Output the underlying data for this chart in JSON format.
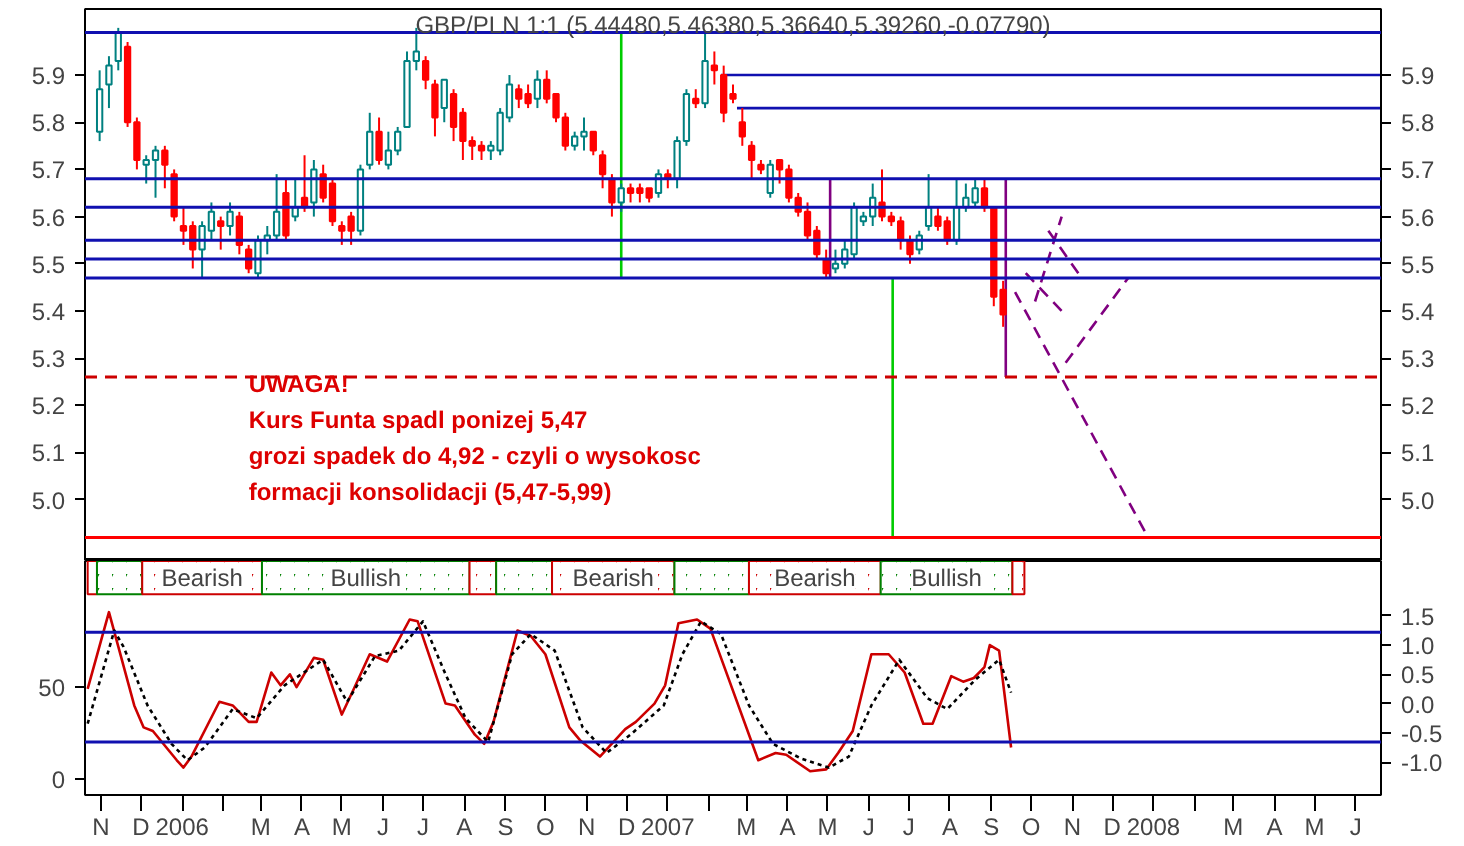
{
  "chart_data": [
    {
      "type": "candlestick",
      "title": "GBP/PLN 1:1 (5.44480,5.46380,5.36640,5.39260,-0.07790)",
      "x": [
        "2005-10-31",
        "2005-11-07",
        "2005-11-14",
        "2005-11-21",
        "2005-11-28",
        "2005-12-05",
        "2005-12-12",
        "2005-12-19",
        "2005-12-26",
        "2006-01-02",
        "2006-01-09",
        "2006-01-16",
        "2006-01-23",
        "2006-01-30",
        "2006-02-06",
        "2006-02-13",
        "2006-02-20",
        "2006-02-27",
        "2006-03-06",
        "2006-03-13",
        "2006-03-20",
        "2006-03-27",
        "2006-04-03",
        "2006-04-10",
        "2006-04-17",
        "2006-04-24",
        "2006-05-01",
        "2006-05-08",
        "2006-05-15",
        "2006-05-22",
        "2006-05-29",
        "2006-06-05",
        "2006-06-12",
        "2006-06-19",
        "2006-06-26",
        "2006-07-03",
        "2006-07-10",
        "2006-07-17",
        "2006-07-24",
        "2006-07-31",
        "2006-08-07",
        "2006-08-14",
        "2006-08-21",
        "2006-08-28",
        "2006-09-04",
        "2006-09-11",
        "2006-09-18",
        "2006-09-25",
        "2006-10-02",
        "2006-10-09",
        "2006-10-16",
        "2006-10-23",
        "2006-10-30",
        "2006-11-06",
        "2006-11-13",
        "2006-11-20",
        "2006-11-27",
        "2006-12-04",
        "2006-12-11",
        "2006-12-18",
        "2006-12-25",
        "2007-01-01",
        "2007-01-08",
        "2007-01-15",
        "2007-01-22",
        "2007-01-29",
        "2007-02-05",
        "2007-02-12",
        "2007-02-19",
        "2007-02-26",
        "2007-03-05",
        "2007-03-12",
        "2007-03-19",
        "2007-03-26",
        "2007-04-02",
        "2007-04-09",
        "2007-04-16",
        "2007-04-23",
        "2007-04-30",
        "2007-05-07",
        "2007-05-14",
        "2007-05-21",
        "2007-05-28",
        "2007-06-04",
        "2007-06-11",
        "2007-06-18",
        "2007-06-25",
        "2007-07-02",
        "2007-07-09",
        "2007-07-16",
        "2007-07-23",
        "2007-07-30",
        "2007-08-06",
        "2007-08-13",
        "2007-08-20",
        "2007-08-27",
        "2007-09-03",
        "2007-09-10"
      ],
      "ohlc": [
        [
          5.78,
          5.91,
          5.76,
          5.87
        ],
        [
          5.88,
          5.94,
          5.83,
          5.92
        ],
        [
          5.93,
          6.0,
          5.91,
          5.99
        ],
        [
          5.96,
          5.97,
          5.79,
          5.8
        ],
        [
          5.8,
          5.81,
          5.7,
          5.72
        ],
        [
          5.71,
          5.73,
          5.67,
          5.72
        ],
        [
          5.72,
          5.75,
          5.64,
          5.74
        ],
        [
          5.74,
          5.75,
          5.66,
          5.71
        ],
        [
          5.69,
          5.7,
          5.59,
          5.6
        ],
        [
          5.58,
          5.62,
          5.54,
          5.57
        ],
        [
          5.58,
          5.59,
          5.49,
          5.53
        ],
        [
          5.53,
          5.59,
          5.47,
          5.58
        ],
        [
          5.57,
          5.63,
          5.55,
          5.61
        ],
        [
          5.59,
          5.6,
          5.53,
          5.58
        ],
        [
          5.58,
          5.63,
          5.56,
          5.61
        ],
        [
          5.6,
          5.61,
          5.52,
          5.54
        ],
        [
          5.53,
          5.54,
          5.48,
          5.49
        ],
        [
          5.48,
          5.56,
          5.47,
          5.55
        ],
        [
          5.55,
          5.58,
          5.52,
          5.56
        ],
        [
          5.56,
          5.69,
          5.55,
          5.61
        ],
        [
          5.65,
          5.68,
          5.55,
          5.56
        ],
        [
          5.6,
          5.68,
          5.59,
          5.62
        ],
        [
          5.64,
          5.73,
          5.61,
          5.62
        ],
        [
          5.63,
          5.72,
          5.6,
          5.7
        ],
        [
          5.69,
          5.71,
          5.63,
          5.64
        ],
        [
          5.67,
          5.68,
          5.58,
          5.59
        ],
        [
          5.58,
          5.59,
          5.54,
          5.57
        ],
        [
          5.6,
          5.61,
          5.54,
          5.57
        ],
        [
          5.57,
          5.71,
          5.56,
          5.7
        ],
        [
          5.71,
          5.82,
          5.7,
          5.78
        ],
        [
          5.78,
          5.81,
          5.71,
          5.72
        ],
        [
          5.71,
          5.78,
          5.7,
          5.74
        ],
        [
          5.74,
          5.79,
          5.73,
          5.78
        ],
        [
          5.79,
          5.95,
          5.79,
          5.93
        ],
        [
          5.93,
          6.0,
          5.91,
          5.95
        ],
        [
          5.93,
          5.94,
          5.87,
          5.89
        ],
        [
          5.88,
          5.89,
          5.77,
          5.81
        ],
        [
          5.83,
          5.89,
          5.8,
          5.89
        ],
        [
          5.86,
          5.87,
          5.76,
          5.79
        ],
        [
          5.82,
          5.83,
          5.72,
          5.76
        ],
        [
          5.76,
          5.77,
          5.72,
          5.75
        ],
        [
          5.75,
          5.76,
          5.72,
          5.74
        ],
        [
          5.74,
          5.76,
          5.72,
          5.75
        ],
        [
          5.74,
          5.83,
          5.73,
          5.82
        ],
        [
          5.81,
          5.9,
          5.8,
          5.88
        ],
        [
          5.87,
          5.88,
          5.83,
          5.85
        ],
        [
          5.86,
          5.88,
          5.83,
          5.84
        ],
        [
          5.85,
          5.91,
          5.83,
          5.89
        ],
        [
          5.89,
          5.91,
          5.84,
          5.85
        ],
        [
          5.86,
          5.86,
          5.8,
          5.81
        ],
        [
          5.81,
          5.82,
          5.74,
          5.75
        ],
        [
          5.75,
          5.78,
          5.74,
          5.77
        ],
        [
          5.77,
          5.81,
          5.74,
          5.78
        ],
        [
          5.78,
          5.78,
          5.73,
          5.74
        ],
        [
          5.73,
          5.74,
          5.66,
          5.69
        ],
        [
          5.68,
          5.69,
          5.6,
          5.63
        ],
        [
          5.63,
          5.67,
          5.61,
          5.66
        ],
        [
          5.66,
          5.67,
          5.63,
          5.65
        ],
        [
          5.66,
          5.67,
          5.63,
          5.65
        ],
        [
          5.66,
          5.66,
          5.63,
          5.64
        ],
        [
          5.65,
          5.7,
          5.64,
          5.69
        ],
        [
          5.69,
          5.7,
          5.66,
          5.68
        ],
        [
          5.68,
          5.77,
          5.66,
          5.76
        ],
        [
          5.76,
          5.87,
          5.75,
          5.86
        ],
        [
          5.85,
          5.87,
          5.83,
          5.84
        ],
        [
          5.84,
          5.99,
          5.83,
          5.93
        ],
        [
          5.92,
          5.95,
          5.88,
          5.91
        ],
        [
          5.9,
          5.92,
          5.8,
          5.82
        ],
        [
          5.86,
          5.88,
          5.84,
          5.85
        ],
        [
          5.8,
          5.83,
          5.75,
          5.77
        ],
        [
          5.75,
          5.76,
          5.68,
          5.72
        ],
        [
          5.71,
          5.72,
          5.69,
          5.7
        ],
        [
          5.65,
          5.72,
          5.64,
          5.71
        ],
        [
          5.72,
          5.72,
          5.67,
          5.7
        ],
        [
          5.7,
          5.71,
          5.63,
          5.64
        ],
        [
          5.64,
          5.65,
          5.6,
          5.61
        ],
        [
          5.61,
          5.63,
          5.55,
          5.56
        ],
        [
          5.57,
          5.58,
          5.51,
          5.52
        ],
        [
          5.51,
          5.53,
          5.47,
          5.48
        ],
        [
          5.49,
          5.53,
          5.48,
          5.5
        ],
        [
          5.5,
          5.55,
          5.49,
          5.53
        ],
        [
          5.52,
          5.63,
          5.51,
          5.62
        ],
        [
          5.59,
          5.61,
          5.58,
          5.6
        ],
        [
          5.6,
          5.67,
          5.58,
          5.64
        ],
        [
          5.63,
          5.7,
          5.59,
          5.6
        ],
        [
          5.6,
          5.61,
          5.58,
          5.59
        ],
        [
          5.59,
          5.6,
          5.53,
          5.55
        ],
        [
          5.55,
          5.56,
          5.5,
          5.52
        ],
        [
          5.53,
          5.57,
          5.52,
          5.56
        ],
        [
          5.58,
          5.69,
          5.57,
          5.62
        ],
        [
          5.6,
          5.62,
          5.57,
          5.58
        ],
        [
          5.59,
          5.6,
          5.54,
          5.55
        ],
        [
          5.55,
          5.68,
          5.54,
          5.62
        ],
        [
          5.62,
          5.67,
          5.61,
          5.64
        ],
        [
          5.63,
          5.68,
          5.62,
          5.66
        ],
        [
          5.66,
          5.68,
          5.61,
          5.62
        ],
        [
          5.62,
          5.62,
          5.41,
          5.43
        ],
        [
          5.4448,
          5.4638,
          5.3664,
          5.3926
        ]
      ],
      "colors": [
        "#008080",
        "#008080",
        "#008080",
        "#ff0000",
        "#ff0000",
        "#008080",
        "#008080",
        "#ff0000",
        "#ff0000",
        "#ff0000",
        "#ff0000",
        "#008080",
        "#008080",
        "#ff0000",
        "#008080",
        "#ff0000",
        "#ff0000",
        "#008080",
        "#008080",
        "#008080",
        "#ff0000",
        "#008080",
        "#ff0000",
        "#008080",
        "#ff0000",
        "#ff0000",
        "#ff0000",
        "#ff0000",
        "#008080",
        "#008080",
        "#ff0000",
        "#008080",
        "#008080",
        "#008080",
        "#008080",
        "#ff0000",
        "#ff0000",
        "#008080",
        "#ff0000",
        "#ff0000",
        "#ff0000",
        "#ff0000",
        "#008080",
        "#008080",
        "#008080",
        "#ff0000",
        "#ff0000",
        "#008080",
        "#ff0000",
        "#ff0000",
        "#ff0000",
        "#008080",
        "#008080",
        "#ff0000",
        "#ff0000",
        "#ff0000",
        "#008080",
        "#ff0000",
        "#ff0000",
        "#ff0000",
        "#008080",
        "#ff0000",
        "#008080",
        "#008080",
        "#ff0000",
        "#008080",
        "#ff0000",
        "#ff0000",
        "#ff0000",
        "#ff0000",
        "#ff0000",
        "#ff0000",
        "#008080",
        "#ff0000",
        "#ff0000",
        "#ff0000",
        "#ff0000",
        "#ff0000",
        "#ff0000",
        "#008080",
        "#008080",
        "#008080",
        "#008080",
        "#008080",
        "#ff0000",
        "#ff0000",
        "#ff0000",
        "#ff0000",
        "#008080",
        "#008080",
        "#ff0000",
        "#ff0000",
        "#008080",
        "#008080",
        "#008080",
        "#ff0000",
        "#ff0000",
        "#ff0000"
      ],
      "xlim": [
        "2005-10-20",
        "2008-06-20"
      ],
      "ylim": [
        4.87,
        6.04
      ],
      "yticks": [
        {
          "value": 5,
          "label": "5.0"
        },
        5.1,
        5.2,
        5.3,
        5.4,
        5.5,
        5.6,
        5.7,
        5.8,
        5.9
      ],
      "y2lim": [
        4.87,
        6.04
      ],
      "y2ticks": [
        {
          "value": 5,
          "label": "5.0"
        },
        5.1,
        5.2,
        5.3,
        5.4,
        5.5,
        5.6,
        5.7,
        5.8,
        5.9
      ],
      "tick_labels": "y",
      "grid": false,
      "ref_lines": [
        {
          "axis": "y",
          "value": 5.99,
          "color": "#1010b0"
        },
        {
          "axis": "y",
          "value": 5.68,
          "color": "#1010b0"
        },
        {
          "axis": "y",
          "value": 5.62,
          "color": "#1010b0"
        },
        {
          "axis": "y",
          "value": 5.55,
          "color": "#1010b0"
        },
        {
          "axis": "y",
          "value": 5.51,
          "color": "#1010b0"
        },
        {
          "axis": "y",
          "value": 5.47,
          "color": "#1010b0"
        },
        {
          "axis": "y",
          "value": 5.26,
          "color": "#cc0000",
          "line_style": "dashed"
        },
        {
          "axis": "y",
          "value": 4.92,
          "color": "#ff0000"
        }
      ],
      "series": [
        {
          "type": "line",
          "x": [
            "2007-02-10",
            "2008-06-20"
          ],
          "values": [
            5.9,
            5.9
          ],
          "color": "#1010b0",
          "line_style": "solid"
        },
        {
          "type": "line",
          "x": [
            "2007-02-22",
            "2008-06-20"
          ],
          "values": [
            5.83,
            5.83
          ],
          "color": "#1010b0",
          "line_style": "solid"
        },
        {
          "type": "line",
          "x": [
            "2006-11-27",
            "2006-11-27"
          ],
          "values": [
            5.47,
            5.99
          ],
          "color": "#00cc00",
          "line_style": "solid"
        },
        {
          "type": "line",
          "x": [
            "2007-06-19",
            "2007-06-19"
          ],
          "values": [
            4.92,
            5.47
          ],
          "color": "#00cc00",
          "line_style": "solid"
        },
        {
          "type": "line",
          "x": [
            "2007-05-03",
            "2007-05-03"
          ],
          "values": [
            5.47,
            5.68
          ],
          "color": "#800080",
          "line_style": "solid"
        },
        {
          "type": "line",
          "x": [
            "2007-09-12",
            "2007-09-12"
          ],
          "values": [
            5.26,
            5.68
          ],
          "color": "#800080",
          "line_style": "solid"
        },
        {
          "type": "line",
          "x": [
            "2007-09-19",
            "2007-12-26"
          ],
          "values": [
            5.44,
            4.93
          ],
          "color": "#800080",
          "line_style": "dashed"
        },
        {
          "type": "line",
          "x": [
            "2007-10-04",
            "2007-10-24"
          ],
          "values": [
            5.42,
            5.6
          ],
          "color": "#800080",
          "line_style": "dashed"
        },
        {
          "type": "line",
          "x": [
            "2007-10-14",
            "2007-11-08"
          ],
          "values": [
            5.57,
            5.47
          ],
          "color": "#800080",
          "line_style": "dashed"
        },
        {
          "type": "line",
          "x": [
            "2007-09-27",
            "2007-10-24"
          ],
          "values": [
            5.48,
            5.4
          ],
          "color": "#800080",
          "line_style": "dashed"
        },
        {
          "type": "line",
          "x": [
            "2007-10-27",
            "2007-12-13"
          ],
          "values": [
            5.29,
            5.47
          ],
          "color": "#800080",
          "line_style": "dashed"
        }
      ],
      "annotations": [
        "UWAGA!",
        "Kurs Funta spadl ponizej 5,47",
        "grozi spadek do 4,92 - czyli o wysokosc",
        "formacji konsolidacji (5,47-5,99)"
      ]
    },
    {
      "type": "line",
      "xlim": [
        "2005-10-20",
        "2008-06-20"
      ],
      "ylim": [
        -9,
        119
      ],
      "yticks": [
        0,
        50
      ],
      "bands": [
        {
          "axis": "x",
          "from": "2005-10-22",
          "to": "2005-10-29",
          "label": null,
          "color": "#cc0000"
        },
        {
          "axis": "x",
          "from": "2005-10-29",
          "to": "2005-12-02",
          "label": null,
          "color": "#008000"
        },
        {
          "axis": "x",
          "from": "2005-12-02",
          "to": "2006-03-02",
          "label": "Bearish",
          "color": "#cc0000"
        },
        {
          "axis": "x",
          "from": "2006-03-02",
          "to": "2006-08-05",
          "label": "Bullish",
          "color": "#008000"
        },
        {
          "axis": "x",
          "from": "2006-08-05",
          "to": "2006-08-25",
          "label": null,
          "color": "#cc0000"
        },
        {
          "axis": "x",
          "from": "2006-08-25",
          "to": "2006-10-06",
          "label": null,
          "color": "#008000"
        },
        {
          "axis": "x",
          "from": "2006-10-06",
          "to": "2007-01-06",
          "label": "Bearish",
          "color": "#cc0000"
        },
        {
          "axis": "x",
          "from": "2007-01-06",
          "to": "2007-03-03",
          "label": null,
          "color": "#008000"
        },
        {
          "axis": "x",
          "from": "2007-03-03",
          "to": "2007-06-10",
          "label": "Bearish",
          "color": "#cc0000"
        },
        {
          "axis": "x",
          "from": "2007-06-10",
          "to": "2007-09-17",
          "label": "Bullish",
          "color": "#008000"
        },
        {
          "axis": "x",
          "from": "2007-09-17",
          "to": "2007-09-26",
          "label": null,
          "color": "#cc0000"
        }
      ],
      "y2lim": [
        -1.56,
        2.44
      ],
      "y2ticks": [
        {
          "value": -1,
          "label": "-1.0"
        },
        -0.5,
        {
          "value": 0,
          "label": "0.0"
        },
        0.5,
        {
          "value": 1,
          "label": "1.0"
        },
        1.5
      ],
      "xticks": [
        {
          "value": "2005-11",
          "label": "N"
        },
        {
          "value": "2005-12",
          "label": "D"
        },
        {
          "value": "2006-01",
          "label": "2006"
        },
        {
          "value": "2006-02",
          "label": null
        },
        {
          "value": "2006-03",
          "label": "M"
        },
        {
          "value": "2006-04",
          "label": "A"
        },
        {
          "value": "2006-05",
          "label": "M"
        },
        {
          "value": "2006-06",
          "label": "J"
        },
        {
          "value": "2006-07",
          "label": "J"
        },
        {
          "value": "2006-08",
          "label": "A"
        },
        {
          "value": "2006-09",
          "label": "S"
        },
        {
          "value": "2006-10",
          "label": "O"
        },
        {
          "value": "2006-11",
          "label": "N"
        },
        {
          "value": "2006-12",
          "label": "D"
        },
        {
          "value": "2007-01",
          "label": "2007"
        },
        {
          "value": "2007-02",
          "label": null
        },
        {
          "value": "2007-03",
          "label": "M"
        },
        {
          "value": "2007-04",
          "label": "A"
        },
        {
          "value": "2007-05",
          "label": "M"
        },
        {
          "value": "2007-06",
          "label": "J"
        },
        {
          "value": "2007-07",
          "label": "J"
        },
        {
          "value": "2007-08",
          "label": "A"
        },
        {
          "value": "2007-09",
          "label": "S"
        },
        {
          "value": "2007-10",
          "label": "O"
        },
        {
          "value": "2007-11",
          "label": "N"
        },
        {
          "value": "2007-12",
          "label": "D"
        },
        {
          "value": "2008-01",
          "label": "2008"
        },
        {
          "value": "2008-02",
          "label": null
        },
        {
          "value": "2008-03",
          "label": "M"
        },
        {
          "value": "2008-04",
          "label": "A"
        },
        {
          "value": "2008-05",
          "label": "M"
        },
        {
          "value": "2008-06",
          "label": "J"
        }
      ],
      "grid": false,
      "ref_lines": [
        {
          "axis": "y",
          "value": 80,
          "color": "#1010b0"
        },
        {
          "axis": "y",
          "value": 20,
          "color": "#1010b0"
        }
      ],
      "series": [
        {
          "color": "#cc0000",
          "line_style": "solid",
          "x": [
            "2005-10-22",
            "2005-11-07",
            "2005-11-26",
            "2005-12-03",
            "2005-12-10",
            "2005-12-28",
            "2006-01-02",
            "2006-01-08",
            "2006-01-29",
            "2006-02-08",
            "2006-02-20",
            "2006-02-26",
            "2006-03-09",
            "2006-03-16",
            "2006-03-23",
            "2006-03-28",
            "2006-04-10",
            "2006-04-17",
            "2006-05-01",
            "2006-05-10",
            "2006-05-22",
            "2006-06-04",
            "2006-06-21",
            "2006-06-27",
            "2006-07-18",
            "2006-07-25",
            "2006-08-09",
            "2006-08-16",
            "2006-08-23",
            "2006-09-10",
            "2006-09-20",
            "2006-10-01",
            "2006-10-19",
            "2006-10-27",
            "2006-11-11",
            "2006-11-30",
            "2006-12-08",
            "2006-12-22",
            "2006-12-30",
            "2007-01-09",
            "2007-01-23",
            "2007-02-02",
            "2007-03-10",
            "2007-03-23",
            "2007-03-31",
            "2007-04-18",
            "2007-04-30",
            "2007-05-09",
            "2007-05-20",
            "2007-06-03",
            "2007-06-16",
            "2007-06-28",
            "2007-07-12",
            "2007-07-19",
            "2007-08-02",
            "2007-08-11",
            "2007-08-19",
            "2007-08-27",
            "2007-08-31",
            "2007-09-07",
            "2007-09-16"
          ],
          "values": [
            49,
            91,
            40,
            28,
            26,
            10,
            6,
            12,
            42,
            40,
            31,
            31,
            58,
            51,
            57,
            50,
            66,
            65,
            35,
            49,
            68,
            64,
            87,
            86,
            41,
            40,
            24,
            19,
            31,
            81,
            78,
            68,
            28,
            21,
            12,
            27,
            31,
            41,
            51,
            85,
            87,
            82,
            10,
            14,
            13,
            4,
            5,
            14,
            26,
            68,
            68,
            58,
            30,
            30,
            56,
            53,
            55,
            61,
            73,
            70,
            17
          ]
        },
        {
          "color": "#000000",
          "line_style": "dotted",
          "x": [
            "2005-10-22",
            "2005-11-11",
            "2005-11-18",
            "2005-12-06",
            "2005-12-24",
            "2006-01-05",
            "2006-01-18",
            "2006-02-08",
            "2006-02-26",
            "2006-03-19",
            "2006-04-17",
            "2006-05-05",
            "2006-05-26",
            "2006-06-13",
            "2006-07-01",
            "2006-07-18",
            "2006-08-02",
            "2006-08-19",
            "2006-09-06",
            "2006-09-20",
            "2006-10-08",
            "2006-10-29",
            "2006-11-16",
            "2006-12-04",
            "2006-12-29",
            "2007-01-12",
            "2007-01-26",
            "2007-02-10",
            "2007-03-03",
            "2007-03-21",
            "2007-04-11",
            "2007-05-02",
            "2007-05-17",
            "2007-06-03",
            "2007-06-24",
            "2007-07-15",
            "2007-07-30",
            "2007-08-20",
            "2007-09-07",
            "2007-09-16"
          ],
          "values": [
            30,
            81,
            72,
            40,
            19,
            10,
            17,
            38,
            33,
            51,
            65,
            42,
            67,
            70,
            86,
            57,
            33,
            20,
            68,
            79,
            70,
            28,
            14,
            24,
            40,
            68,
            86,
            79,
            40,
            19,
            11,
            6,
            12,
            40,
            65,
            44,
            38,
            54,
            65,
            47
          ]
        }
      ]
    }
  ]
}
